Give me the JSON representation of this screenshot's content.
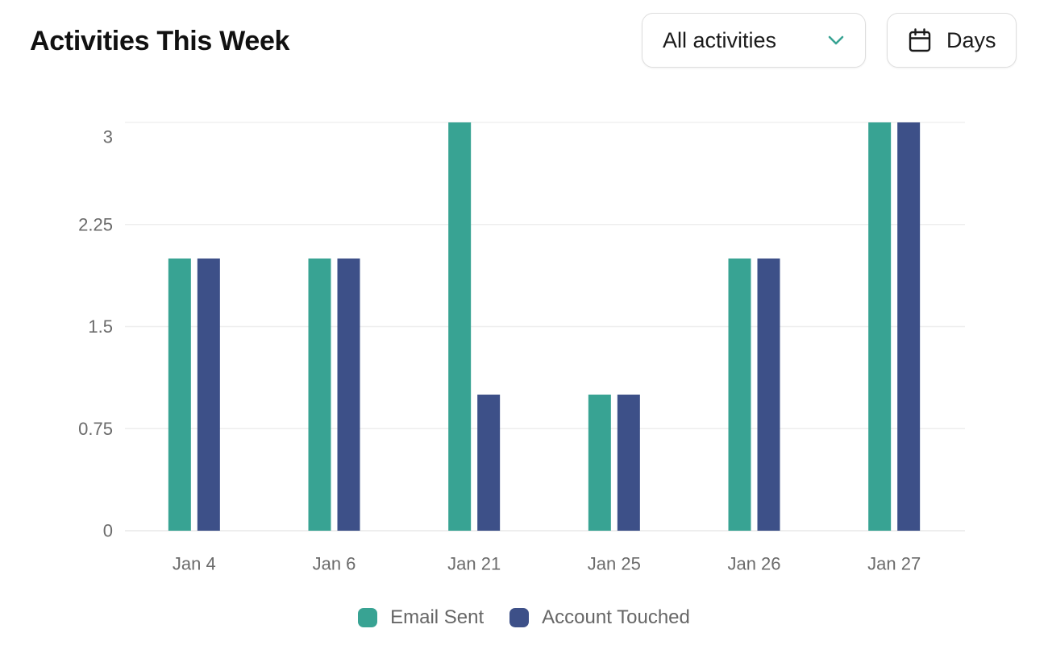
{
  "header": {
    "title": "Activities This Week",
    "activity_select": {
      "value": "All activities",
      "icon": "chevron-down-icon"
    },
    "period_button": {
      "label": "Days",
      "icon": "calendar-icon"
    }
  },
  "colors": {
    "email_sent": "#38A393",
    "account_touched": "#3D5088",
    "accent": "#38A393"
  },
  "chart_data": {
    "type": "bar",
    "categories": [
      "Jan 4",
      "Jan 6",
      "Jan 21",
      "Jan 25",
      "Jan 26",
      "Jan 27"
    ],
    "series": [
      {
        "name": "Email Sent",
        "values": [
          2,
          2,
          3,
          1,
          2,
          3
        ]
      },
      {
        "name": "Account Touched",
        "values": [
          2,
          2,
          1,
          1,
          2,
          3
        ]
      }
    ],
    "yticks": [
      0,
      0.75,
      1.5,
      2.25,
      3
    ],
    "ytick_labels": [
      "0",
      "0.75",
      "1.5",
      "2.25",
      "3"
    ],
    "ylim": [
      0,
      3
    ],
    "title": "Activities This Week",
    "xlabel": "",
    "ylabel": "",
    "grid": true,
    "legend_position": "bottom-center"
  }
}
